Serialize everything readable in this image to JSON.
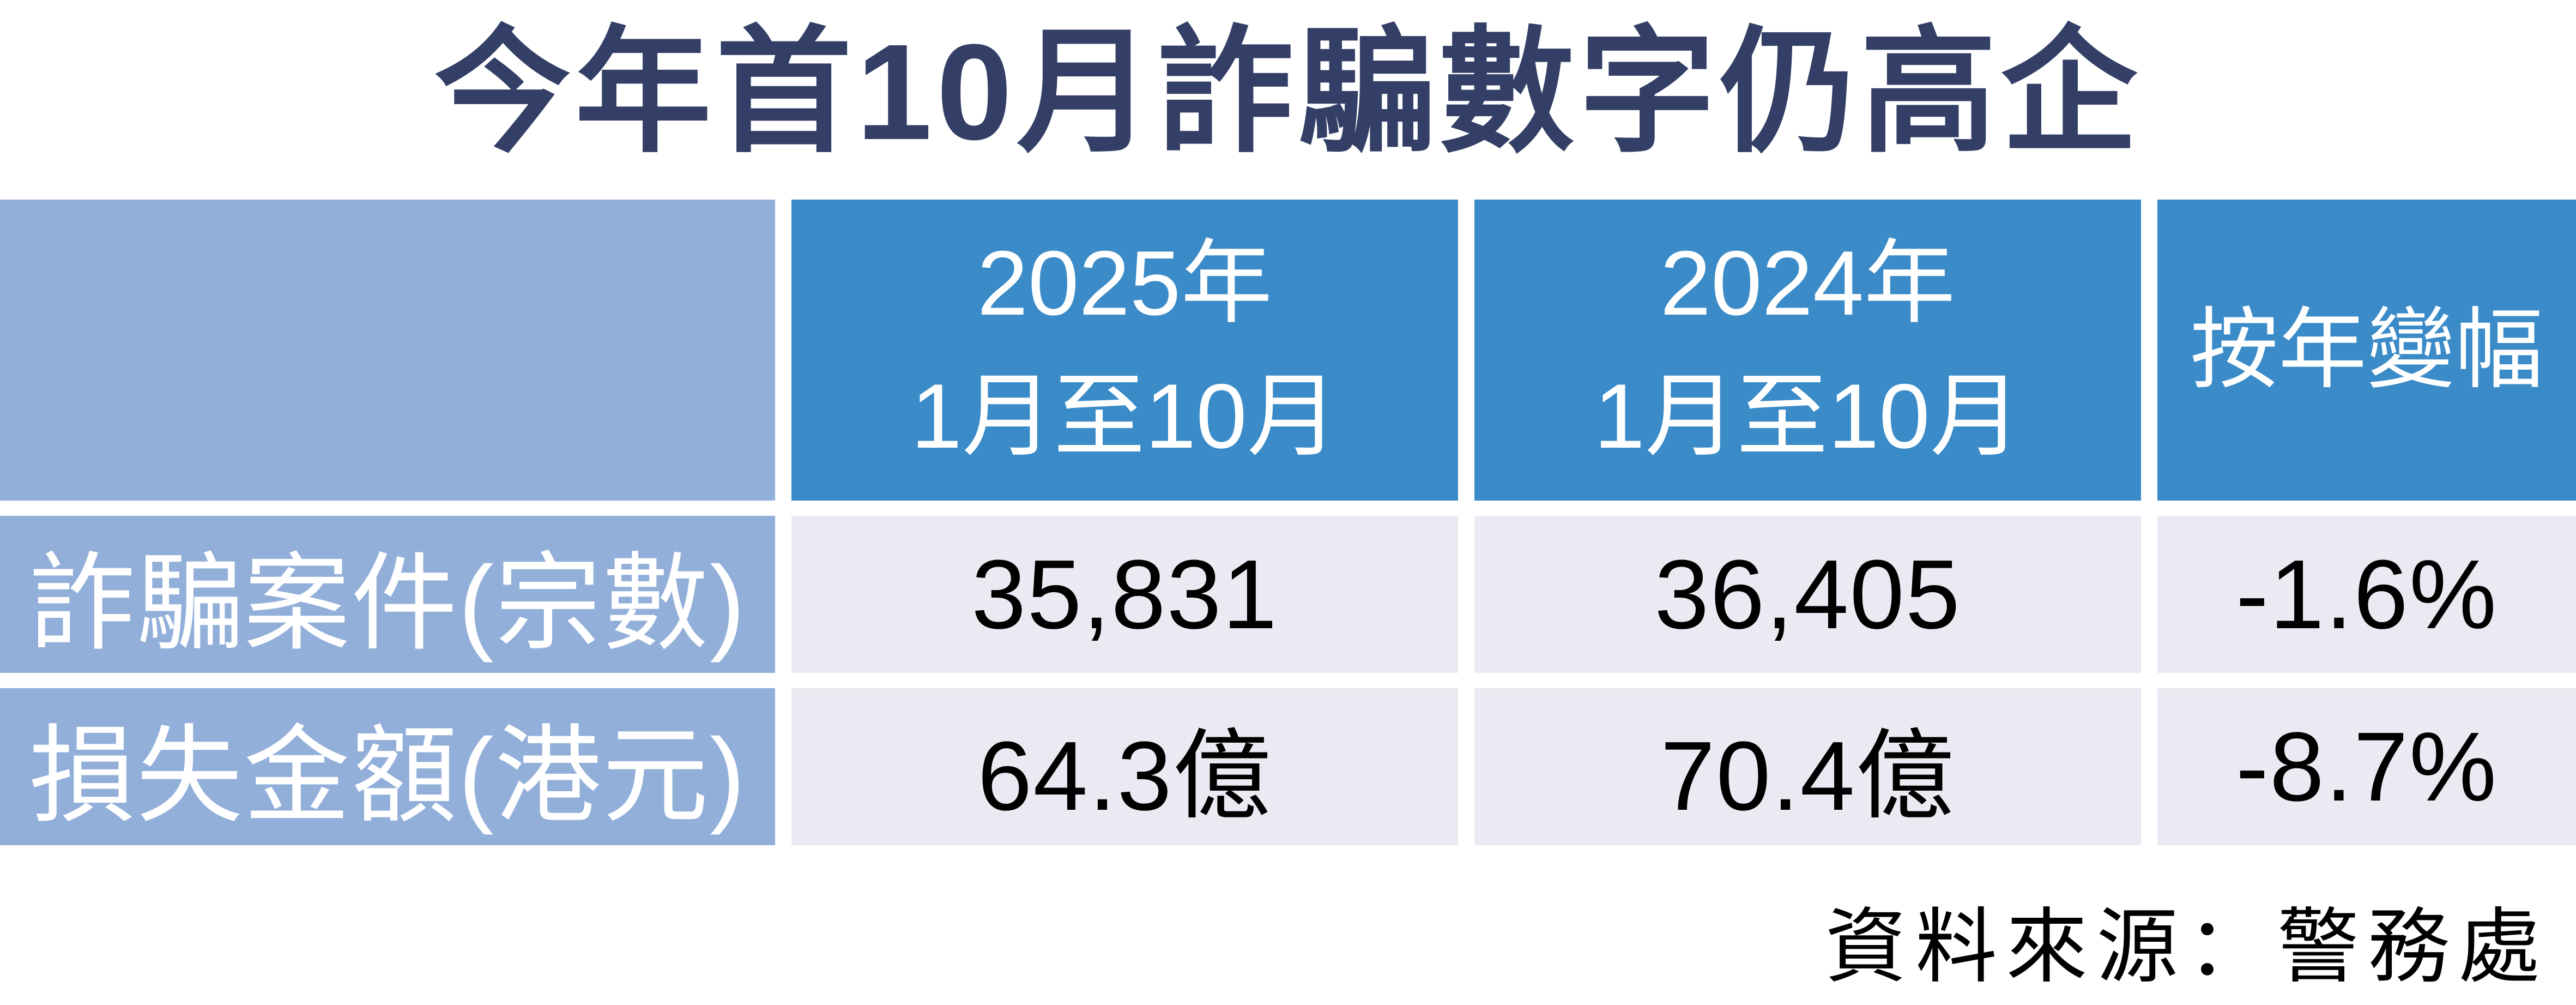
{
  "chart_data": {
    "type": "table",
    "title": "今年首10月詐騙數字仍高企",
    "columns": [
      "",
      "2025年1月至10月",
      "2024年1月至10月",
      "按年變幅"
    ],
    "rows": [
      [
        "詐騙案件(宗數)",
        "35,831",
        "36,405",
        "-1.6%"
      ],
      [
        "損失金額(港元)",
        "64.3億",
        "70.4億",
        "-8.7%"
      ]
    ],
    "source": "資料來源：警務處",
    "layout": "header row blue, label column light blue, value cells lavender, white gutters between all cells"
  },
  "header_display": {
    "col2025": {
      "line1": "2025年",
      "line2": "1月至10月"
    },
    "col2024": {
      "line1": "2024年",
      "line2": "1月至10月"
    },
    "yoy": "按年變幅"
  },
  "colors": {
    "title_navy": "#333F66",
    "header_blue": "#3A8BC8",
    "label_light_blue": "#92AFDA",
    "cell_lavender": "#EAEAF3",
    "text_white": "#FFFFFF",
    "text_black": "#000000"
  }
}
